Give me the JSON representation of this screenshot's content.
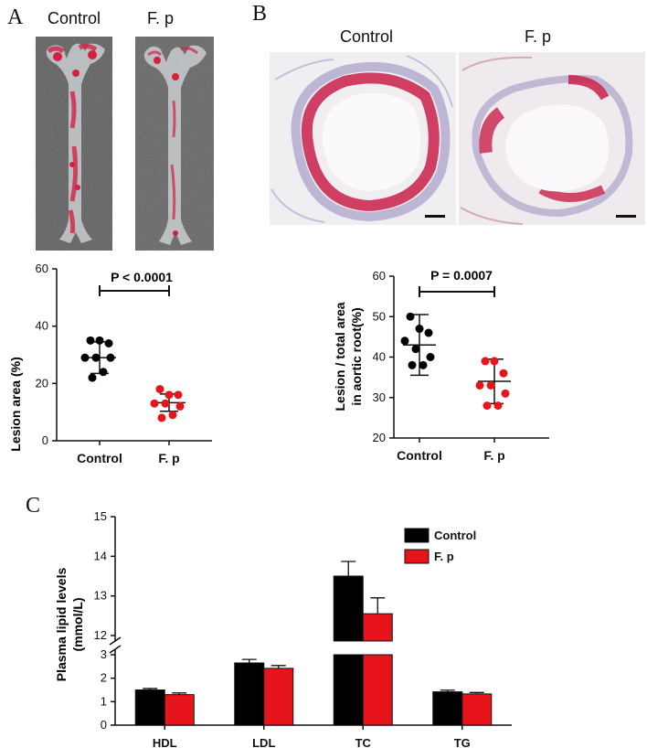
{
  "panels": {
    "a": {
      "letter": "A",
      "photo_labels": [
        "Control",
        "F. p"
      ]
    },
    "b": {
      "letter": "B",
      "photo_labels": [
        "Control",
        "F. p"
      ]
    },
    "c": {
      "letter": "C"
    }
  },
  "colors": {
    "control": "#000000",
    "fp": "#e8141c",
    "stain": "#c8204a",
    "tissue": "#8a7fb4"
  },
  "chart_data": [
    {
      "id": "lesion-area",
      "type": "scatter",
      "title": "",
      "xlabel": "",
      "ylabel": "Lesion area (%)",
      "ylim": [
        0,
        60
      ],
      "yticks": [
        0,
        20,
        40,
        60
      ],
      "categories": [
        "Control",
        "F. p"
      ],
      "annotation": "P < 0.0001",
      "series": [
        {
          "name": "Control",
          "points": [
            35,
            35,
            34,
            29,
            29,
            29,
            24,
            22
          ],
          "mean": 29,
          "sd": 5.5
        },
        {
          "name": "F. p",
          "points": [
            18,
            16,
            16,
            13,
            13,
            12,
            9,
            8
          ],
          "mean": 13.3,
          "sd": 3
        }
      ]
    },
    {
      "id": "aortic-root",
      "type": "scatter",
      "title": "",
      "xlabel": "",
      "ylabel": "Lesion / total area in aortic root(%)",
      "ylim": [
        20,
        60
      ],
      "yticks": [
        20,
        30,
        40,
        50,
        60
      ],
      "categories": [
        "Control",
        "F. p"
      ],
      "annotation": "P = 0.0007",
      "series": [
        {
          "name": "Control",
          "points": [
            50,
            47,
            46,
            44,
            42,
            40,
            38,
            38
          ],
          "mean": 43,
          "sd": 7.5
        },
        {
          "name": "F. p",
          "points": [
            39,
            39,
            36,
            33,
            33,
            31,
            28,
            28
          ],
          "mean": 34,
          "sd": 5.5
        }
      ]
    },
    {
      "id": "plasma-lipids",
      "type": "bar",
      "title": "",
      "xlabel": "",
      "ylabel": "Plasma lipid levels (mmol/L)",
      "categories": [
        "HDL",
        "LDL",
        "TC",
        "TG"
      ],
      "axis_break": {
        "lower": [
          0,
          3
        ],
        "upper": [
          12,
          15
        ]
      },
      "yticks_lower": [
        0,
        1,
        2,
        3
      ],
      "yticks_upper": [
        12,
        13,
        14,
        15
      ],
      "legend": "top-right",
      "series": [
        {
          "name": "Control",
          "values": [
            1.5,
            2.65,
            13.5,
            1.42
          ],
          "errors": [
            0.06,
            0.15,
            0.37,
            0.07
          ]
        },
        {
          "name": "F. p",
          "values": [
            1.3,
            2.42,
            12.55,
            1.33
          ],
          "errors": [
            0.07,
            0.12,
            0.4,
            0.06
          ]
        }
      ]
    }
  ]
}
